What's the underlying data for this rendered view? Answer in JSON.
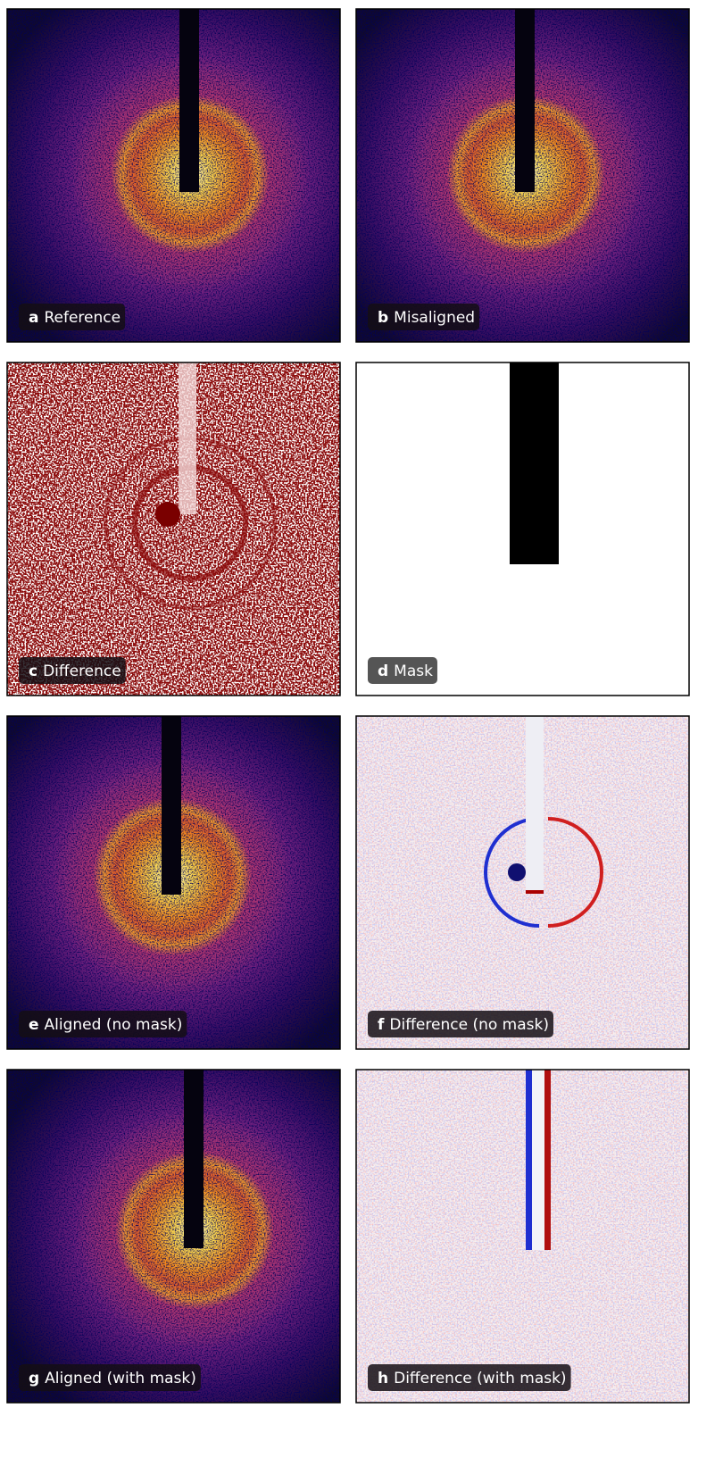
{
  "panels": [
    {
      "letter": "a",
      "label": "Reference"
    },
    {
      "letter": "b",
      "label": "Misaligned"
    },
    {
      "letter": "c",
      "label": "Difference"
    },
    {
      "letter": "d",
      "label": "Mask"
    },
    {
      "letter": "e",
      "label": "Aligned (no mask)"
    },
    {
      "letter": "f",
      "label": "Difference (no mask)"
    },
    {
      "letter": "g",
      "label": "Aligned (with mask)"
    },
    {
      "letter": "h",
      "label": "Difference (with mask)"
    }
  ]
}
